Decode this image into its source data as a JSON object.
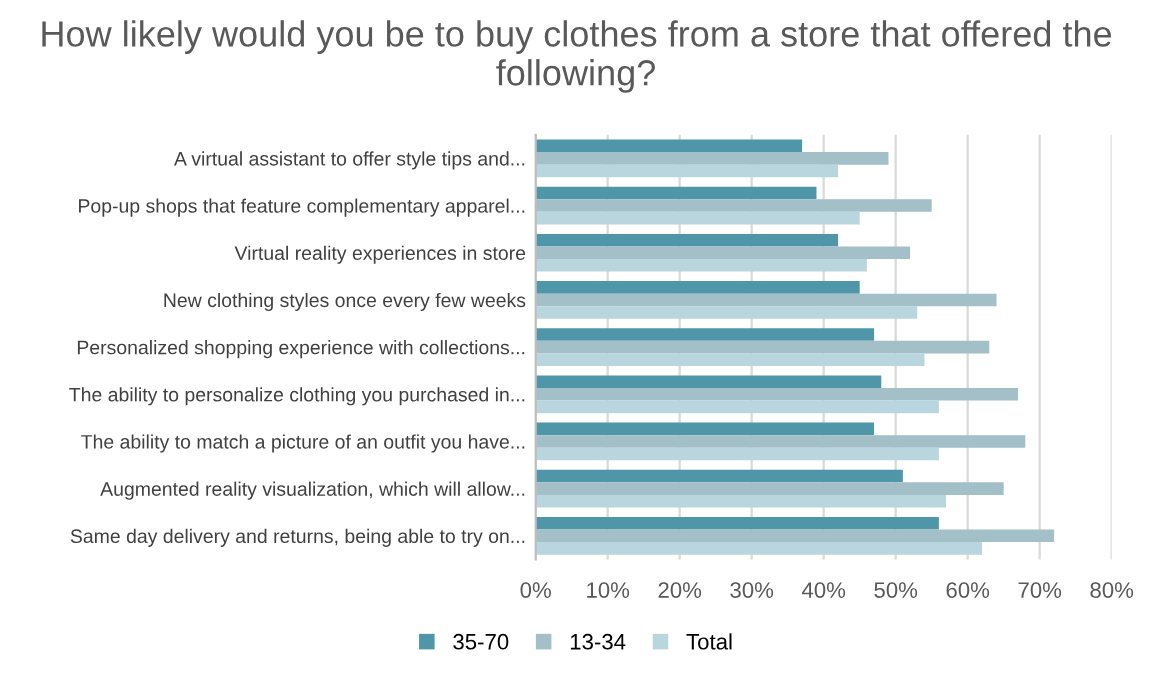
{
  "chart_data": {
    "type": "bar",
    "orientation": "horizontal",
    "title": "How likely would you be to buy clothes from a store that offered the following?",
    "categories": [
      "A virtual assistant to offer style tips and...",
      "Pop-up shops that feature complementary apparel...",
      "Virtual reality experiences in store",
      "New clothing styles once every few weeks",
      "Personalized shopping experience with collections...",
      "The ability to personalize clothing you purchased in...",
      "The ability to match a picture of an outfit you have...",
      "Augmented reality visualization, which will allow...",
      "Same day delivery and returns, being able to try on..."
    ],
    "series": [
      {
        "name": "35-70",
        "color": "#4f97a8",
        "values": [
          37,
          39,
          42,
          45,
          47,
          48,
          47,
          51,
          56
        ]
      },
      {
        "name": "13-34",
        "color": "#a3bfc7",
        "values": [
          49,
          55,
          52,
          64,
          63,
          67,
          68,
          65,
          72
        ]
      },
      {
        "name": "Total",
        "color": "#b9d6de",
        "values": [
          42,
          45,
          46,
          53,
          54,
          56,
          56,
          57,
          62
        ]
      }
    ],
    "xlim": [
      0,
      80
    ],
    "xticks": [
      {
        "value": 0,
        "label": "0%"
      },
      {
        "value": 10,
        "label": "10%"
      },
      {
        "value": 20,
        "label": "20%"
      },
      {
        "value": 30,
        "label": "30%"
      },
      {
        "value": 40,
        "label": "40%"
      },
      {
        "value": 50,
        "label": "50%"
      },
      {
        "value": 60,
        "label": "60%"
      },
      {
        "value": 70,
        "label": "70%"
      },
      {
        "value": 80,
        "label": "80%"
      }
    ],
    "grid": "x",
    "legend": "bottom"
  }
}
